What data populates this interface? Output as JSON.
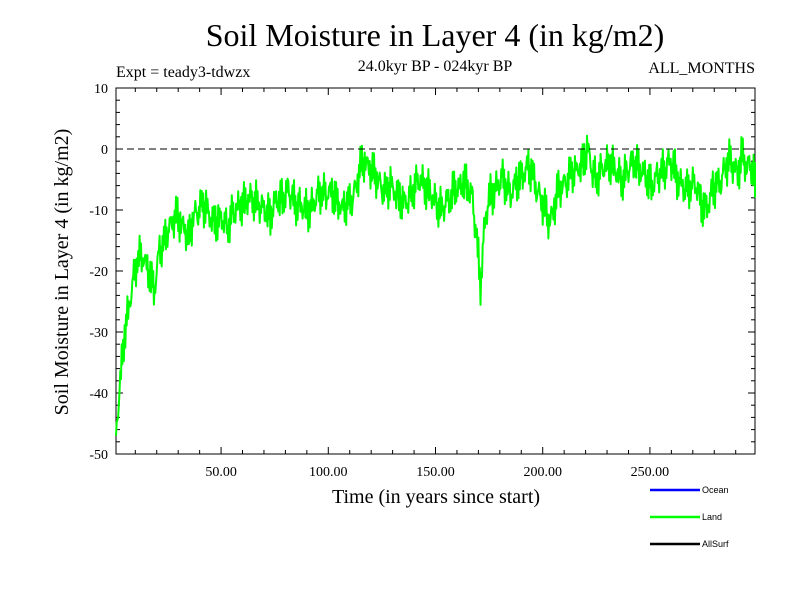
{
  "chart_data": {
    "type": "line",
    "title": "Soil Moisture in Layer 4 (in kg/m2)",
    "subtitle": "24.0kyr BP - 024kyr BP",
    "experiment": "Expt = teady3-tdwzx",
    "season": "ALL_MONTHS",
    "xlabel": "Time (in years since start)",
    "ylabel": "Soil Moisture in Layer 4 (in kg/m2)",
    "xlim": [
      1,
      299
    ],
    "ylim": [
      -50,
      10
    ],
    "x_ticks": [
      50,
      100,
      150,
      200,
      250
    ],
    "x_tick_labels": [
      "50.00",
      "100.00",
      "150.00",
      "200.00",
      "250.00"
    ],
    "y_ticks": [
      10,
      0,
      -10,
      -20,
      -30,
      -40,
      -50
    ],
    "y_tick_labels": [
      "10",
      "0",
      "-10",
      "-20",
      "-30",
      "-40",
      "-50"
    ],
    "reference_line": 0,
    "legend": [
      {
        "name": "Ocean",
        "color": "#0000ff"
      },
      {
        "name": "Land",
        "color": "#00ff00"
      },
      {
        "name": "AllSurf",
        "color": "#000000"
      }
    ],
    "series": [
      {
        "name": "Land",
        "color": "#00ff00",
        "x_start": 1,
        "x_step": 2,
        "values": [
          -47,
          -38,
          -30,
          -26,
          -22,
          -18,
          -17,
          -19,
          -21,
          -23,
          -17,
          -16,
          -13,
          -12,
          -11,
          -12,
          -13,
          -15,
          -11,
          -10,
          -9,
          -10,
          -11,
          -12,
          -12,
          -11,
          -13,
          -11,
          -10,
          -9,
          -9,
          -8,
          -8,
          -9,
          -10,
          -10,
          -11,
          -9,
          -8,
          -8,
          -7,
          -8,
          -9,
          -9,
          -10,
          -10,
          -9,
          -8,
          -7,
          -7,
          -7,
          -8,
          -9,
          -10,
          -9,
          -8,
          -6,
          -3,
          -2,
          -3,
          -4,
          -5,
          -6,
          -7,
          -6,
          -7,
          -8,
          -9,
          -8,
          -7,
          -6,
          -5,
          -6,
          -7,
          -8,
          -9,
          -10,
          -9,
          -8,
          -6,
          -7,
          -5,
          -6,
          -8,
          -14,
          -22,
          -12,
          -8,
          -7,
          -6,
          -5,
          -6,
          -7,
          -6,
          -5,
          -4,
          -3,
          -4,
          -6,
          -8,
          -10,
          -12,
          -10,
          -7,
          -6,
          -5,
          -4,
          -4,
          -3,
          -2,
          0,
          -3,
          -5,
          -4,
          -3,
          -2,
          -3,
          -4,
          -5,
          -4,
          -3,
          -2,
          -3,
          -4,
          -5,
          -6,
          -5,
          -4,
          -3,
          -2,
          -3,
          -5,
          -6,
          -7,
          -6,
          -5,
          -8,
          -10,
          -9,
          -7,
          -6,
          -5,
          -3,
          -2,
          -3,
          -4,
          -1,
          -3,
          -2,
          -5
        ]
      }
    ]
  }
}
